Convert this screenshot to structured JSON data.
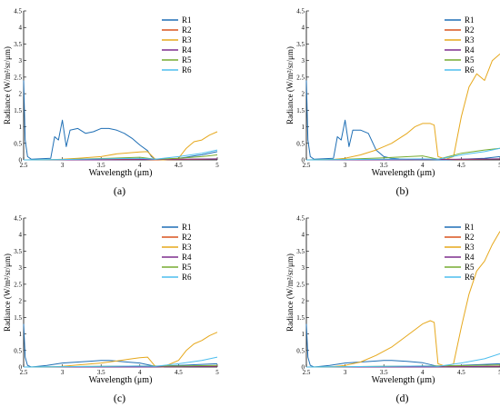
{
  "figure": {
    "panel_labels": [
      "(a)",
      "(b)",
      "(c)",
      "(d)"
    ]
  },
  "legend_entries": [
    {
      "name": "R1",
      "color": "#1f6fb5"
    },
    {
      "name": "R2",
      "color": "#d8541e"
    },
    {
      "name": "R3",
      "color": "#e6a81c"
    },
    {
      "name": "R4",
      "color": "#7e2f8e"
    },
    {
      "name": "R5",
      "color": "#77ac30"
    },
    {
      "name": "R6",
      "color": "#4dbeee"
    }
  ],
  "chart_data": [
    {
      "type": "line",
      "panel_label": "(a)",
      "xlabel": "Wavelength (μm)",
      "ylabel": "Radiance (W/m²/sr/μm)",
      "xlim": [
        2.5,
        5
      ],
      "ylim": [
        0,
        4.5
      ],
      "xticks": [
        2.5,
        3,
        3.5,
        4,
        4.5,
        5
      ],
      "xtick_labels": [
        "2.5",
        "3",
        "3.5",
        "4",
        "4.5",
        "5"
      ],
      "yticks": [
        0,
        0.5,
        1,
        1.5,
        2,
        2.5,
        3,
        3.5,
        4,
        4.5
      ],
      "ytick_labels": [
        "0",
        "0.5",
        "1",
        "1.5",
        "2",
        "2.5",
        "3",
        "3.5",
        "4",
        "4.5"
      ],
      "legend_position": "top-right",
      "series": [
        {
          "name": "R1",
          "x": [
            2.5,
            2.52,
            2.55,
            2.6,
            2.85,
            2.9,
            2.95,
            3.0,
            3.05,
            3.1,
            3.2,
            3.3,
            3.4,
            3.5,
            3.6,
            3.7,
            3.8,
            3.9,
            4.0,
            4.1,
            4.15,
            4.2,
            4.3,
            4.4,
            4.5,
            4.6,
            4.7,
            4.8,
            4.9,
            5.0
          ],
          "y": [
            2.4,
            0.6,
            0.1,
            0.02,
            0.05,
            0.7,
            0.6,
            1.2,
            0.4,
            0.9,
            0.95,
            0.8,
            0.85,
            0.95,
            0.95,
            0.9,
            0.8,
            0.65,
            0.45,
            0.28,
            0.1,
            0.02,
            0.0,
            0.02,
            0.05,
            0.08,
            0.12,
            0.15,
            0.2,
            0.25
          ]
        },
        {
          "name": "R2",
          "x": [
            2.5,
            3.0,
            3.5,
            4.0,
            4.2,
            4.5,
            4.8,
            5.0
          ],
          "y": [
            0.0,
            0.0,
            0.01,
            0.02,
            0.0,
            0.01,
            0.02,
            0.03
          ]
        },
        {
          "name": "R3",
          "x": [
            2.5,
            2.8,
            3.0,
            3.2,
            3.5,
            3.7,
            4.0,
            4.1,
            4.2,
            4.3,
            4.5,
            4.6,
            4.7,
            4.8,
            4.9,
            5.0
          ],
          "y": [
            0.0,
            0.0,
            0.02,
            0.05,
            0.1,
            0.18,
            0.24,
            0.25,
            0.02,
            0.0,
            0.05,
            0.35,
            0.55,
            0.6,
            0.75,
            0.85
          ]
        },
        {
          "name": "R4",
          "x": [
            2.5,
            3.0,
            3.5,
            4.0,
            4.5,
            5.0
          ],
          "y": [
            0.0,
            0.0,
            0.0,
            0.01,
            0.02,
            0.03
          ]
        },
        {
          "name": "R5",
          "x": [
            2.5,
            3.0,
            3.5,
            4.0,
            4.2,
            4.5,
            4.8,
            5.0
          ],
          "y": [
            0.0,
            0.01,
            0.04,
            0.08,
            0.02,
            0.05,
            0.1,
            0.15
          ]
        },
        {
          "name": "R6",
          "x": [
            2.5,
            3.0,
            3.5,
            4.0,
            4.2,
            4.5,
            4.8,
            5.0
          ],
          "y": [
            0.0,
            0.01,
            0.03,
            0.05,
            0.02,
            0.1,
            0.2,
            0.3
          ]
        }
      ]
    },
    {
      "type": "line",
      "panel_label": "(b)",
      "xlabel": "Wavelength (μm)",
      "ylabel": "Radiance (W/m²/sr/μm)",
      "xlim": [
        2.5,
        5
      ],
      "ylim": [
        0,
        4.5
      ],
      "xticks": [
        2.5,
        3,
        3.5,
        4,
        4.5,
        5
      ],
      "xtick_labels": [
        "2.5",
        "3",
        "3.5",
        "4",
        "4.5",
        "5"
      ],
      "yticks": [
        0,
        0.5,
        1,
        1.5,
        2,
        2.5,
        3,
        3.5,
        4,
        4.5
      ],
      "ytick_labels": [
        "0",
        "0.5",
        "1",
        "1.5",
        "2",
        "2.5",
        "3",
        "3.5",
        "4",
        "4.5"
      ],
      "legend_position": "top-right",
      "series": [
        {
          "name": "R1",
          "x": [
            2.5,
            2.52,
            2.55,
            2.6,
            2.85,
            2.9,
            2.95,
            3.0,
            3.05,
            3.1,
            3.2,
            3.3,
            3.4,
            3.5,
            3.6,
            3.7,
            3.8,
            3.9,
            4.0,
            4.1,
            4.2,
            4.3,
            4.5,
            4.8,
            5.0
          ],
          "y": [
            2.4,
            0.6,
            0.1,
            0.02,
            0.05,
            0.7,
            0.6,
            1.2,
            0.4,
            0.9,
            0.9,
            0.8,
            0.3,
            0.1,
            0.05,
            0.03,
            0.02,
            0.01,
            0.01,
            0.01,
            0.0,
            0.0,
            0.02,
            0.05,
            0.1
          ]
        },
        {
          "name": "R2",
          "x": [
            2.5,
            3.0,
            3.5,
            4.0,
            4.5,
            5.0
          ],
          "y": [
            0.0,
            0.0,
            0.01,
            0.02,
            0.01,
            0.03
          ]
        },
        {
          "name": "R3",
          "x": [
            2.5,
            2.8,
            3.0,
            3.2,
            3.4,
            3.6,
            3.8,
            3.9,
            4.0,
            4.1,
            4.15,
            4.2,
            4.3,
            4.4,
            4.5,
            4.6,
            4.7,
            4.8,
            4.9,
            5.0
          ],
          "y": [
            0.0,
            0.0,
            0.05,
            0.15,
            0.3,
            0.5,
            0.8,
            1.0,
            1.1,
            1.1,
            1.05,
            0.1,
            0.02,
            0.1,
            1.3,
            2.2,
            2.6,
            2.4,
            3.0,
            3.2
          ]
        },
        {
          "name": "R4",
          "x": [
            2.5,
            3.0,
            3.5,
            4.0,
            4.5,
            5.0
          ],
          "y": [
            0.0,
            0.0,
            0.0,
            0.01,
            0.02,
            0.03
          ]
        },
        {
          "name": "R5",
          "x": [
            2.5,
            3.0,
            3.5,
            4.0,
            4.2,
            4.5,
            4.8,
            5.0
          ],
          "y": [
            0.0,
            0.02,
            0.06,
            0.12,
            0.02,
            0.2,
            0.3,
            0.35
          ]
        },
        {
          "name": "R6",
          "x": [
            2.5,
            3.0,
            3.5,
            4.0,
            4.2,
            4.5,
            4.8,
            5.0
          ],
          "y": [
            0.0,
            0.01,
            0.02,
            0.03,
            0.02,
            0.15,
            0.25,
            0.35
          ]
        }
      ]
    },
    {
      "type": "line",
      "panel_label": "(c)",
      "xlabel": "Wavelength (μm)",
      "ylabel": "Radiance (W/m²/sr/μm)",
      "xlim": [
        2.5,
        5
      ],
      "ylim": [
        0,
        4.5
      ],
      "xticks": [
        2.5,
        3,
        3.5,
        4,
        4.5,
        5
      ],
      "xtick_labels": [
        "2.5",
        "3",
        "3.5",
        "4",
        "4.5",
        "5"
      ],
      "yticks": [
        0,
        0.5,
        1,
        1.5,
        2,
        2.5,
        3,
        3.5,
        4,
        4.5
      ],
      "ytick_labels": [
        "0",
        "0.5",
        "1",
        "1.5",
        "2",
        "2.5",
        "3",
        "3.5",
        "4",
        "4.5"
      ],
      "legend_position": "top-right",
      "series": [
        {
          "name": "R1",
          "x": [
            2.5,
            2.52,
            2.55,
            2.6,
            2.8,
            3.0,
            3.2,
            3.4,
            3.5,
            3.6,
            3.8,
            4.0,
            4.2,
            4.5,
            4.8,
            5.0
          ],
          "y": [
            1.3,
            0.3,
            0.05,
            0.0,
            0.05,
            0.12,
            0.15,
            0.18,
            0.2,
            0.2,
            0.16,
            0.12,
            0.02,
            0.05,
            0.08,
            0.1
          ]
        },
        {
          "name": "R2",
          "x": [
            2.5,
            3.0,
            3.5,
            4.0,
            4.5,
            5.0
          ],
          "y": [
            0.0,
            0.0,
            0.01,
            0.01,
            0.01,
            0.02
          ]
        },
        {
          "name": "R3",
          "x": [
            2.5,
            2.8,
            3.0,
            3.2,
            3.5,
            3.7,
            3.9,
            4.0,
            4.1,
            4.2,
            4.3,
            4.5,
            4.6,
            4.7,
            4.8,
            4.9,
            5.0
          ],
          "y": [
            0.0,
            0.0,
            0.02,
            0.06,
            0.12,
            0.18,
            0.25,
            0.28,
            0.3,
            0.02,
            0.0,
            0.2,
            0.5,
            0.7,
            0.8,
            0.95,
            1.05
          ]
        },
        {
          "name": "R4",
          "x": [
            2.5,
            3.0,
            3.5,
            4.0,
            4.5,
            5.0
          ],
          "y": [
            0.0,
            0.0,
            0.0,
            0.0,
            0.01,
            0.02
          ]
        },
        {
          "name": "R5",
          "x": [
            2.5,
            3.0,
            3.5,
            4.0,
            4.5,
            5.0
          ],
          "y": [
            0.0,
            0.01,
            0.02,
            0.03,
            0.03,
            0.05
          ]
        },
        {
          "name": "R6",
          "x": [
            2.5,
            3.0,
            3.5,
            4.0,
            4.2,
            4.5,
            4.8,
            5.0
          ],
          "y": [
            0.0,
            0.01,
            0.02,
            0.03,
            0.02,
            0.1,
            0.2,
            0.3
          ]
        }
      ]
    },
    {
      "type": "line",
      "panel_label": "(d)",
      "xlabel": "Wavelength (μm)",
      "ylabel": "Radiance (W/m²/sr/μm)",
      "xlim": [
        2.5,
        5
      ],
      "ylim": [
        0,
        4.5
      ],
      "xticks": [
        2.5,
        3,
        3.5,
        4,
        4.5,
        5
      ],
      "xtick_labels": [
        "2.5",
        "3",
        "3.5",
        "4",
        "4.5",
        "5"
      ],
      "yticks": [
        0,
        0.5,
        1,
        1.5,
        2,
        2.5,
        3,
        3.5,
        4,
        4.5
      ],
      "ytick_labels": [
        "0",
        "0.5",
        "1",
        "1.5",
        "2",
        "2.5",
        "3",
        "3.5",
        "4",
        "4.5"
      ],
      "legend_position": "top-right",
      "series": [
        {
          "name": "R1",
          "x": [
            2.5,
            2.52,
            2.55,
            2.6,
            2.8,
            3.0,
            3.2,
            3.4,
            3.5,
            3.6,
            3.8,
            4.0,
            4.2,
            4.5,
            4.8,
            5.0
          ],
          "y": [
            1.3,
            0.3,
            0.05,
            0.0,
            0.05,
            0.12,
            0.15,
            0.18,
            0.2,
            0.2,
            0.17,
            0.13,
            0.02,
            0.05,
            0.08,
            0.1
          ]
        },
        {
          "name": "R2",
          "x": [
            2.5,
            3.0,
            3.5,
            4.0,
            4.5,
            5.0
          ],
          "y": [
            0.0,
            0.0,
            0.01,
            0.01,
            0.01,
            0.02
          ]
        },
        {
          "name": "R3",
          "x": [
            2.5,
            2.8,
            3.0,
            3.2,
            3.4,
            3.6,
            3.8,
            4.0,
            4.1,
            4.15,
            4.2,
            4.3,
            4.4,
            4.5,
            4.6,
            4.7,
            4.8,
            4.9,
            5.0
          ],
          "y": [
            0.0,
            0.0,
            0.05,
            0.15,
            0.35,
            0.6,
            0.95,
            1.3,
            1.4,
            1.35,
            0.1,
            0.02,
            0.1,
            1.2,
            2.2,
            2.9,
            3.2,
            3.7,
            4.1
          ]
        },
        {
          "name": "R4",
          "x": [
            2.5,
            3.0,
            3.5,
            4.0,
            4.5,
            5.0
          ],
          "y": [
            0.0,
            0.0,
            0.0,
            0.0,
            0.01,
            0.02
          ]
        },
        {
          "name": "R5",
          "x": [
            2.5,
            3.0,
            3.5,
            4.0,
            4.5,
            5.0
          ],
          "y": [
            0.0,
            0.01,
            0.02,
            0.03,
            0.04,
            0.06
          ]
        },
        {
          "name": "R6",
          "x": [
            2.5,
            3.0,
            3.5,
            4.0,
            4.2,
            4.5,
            4.8,
            5.0
          ],
          "y": [
            0.0,
            0.01,
            0.02,
            0.03,
            0.02,
            0.12,
            0.25,
            0.4
          ]
        }
      ]
    }
  ]
}
